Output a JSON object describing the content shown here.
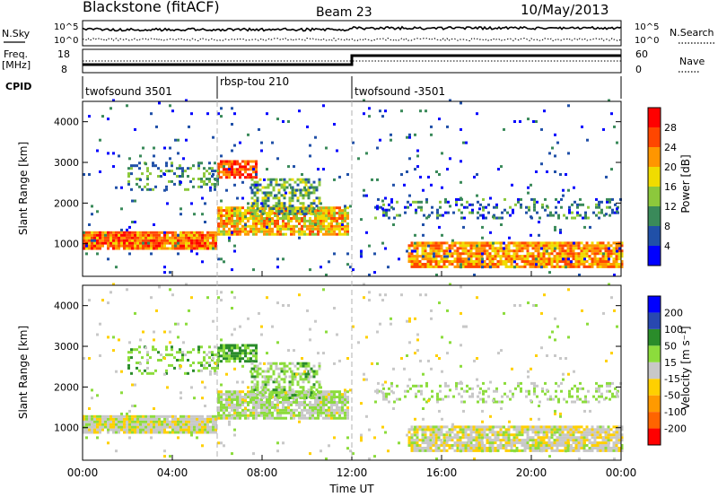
{
  "header": {
    "station": "Blackstone (fitACF)",
    "beam": "Beam 23",
    "date": "10/May/2013"
  },
  "labels": {
    "nsky": "N.Sky",
    "nsearch": "N.Search",
    "freq": "Freq.",
    "freq_unit": "[MHz]",
    "nave": "Nave",
    "cpid": "CPID",
    "xlabel": "Time UT",
    "ylabel": "Slant Range [km]",
    "power_label": "Power [dB]",
    "velocity_label": "Velocity [m s⁻¹]"
  },
  "noise_ticks": {
    "top": "10^5",
    "bottom": "10^0"
  },
  "freq_ticks": [
    "18",
    "8"
  ],
  "nave_ticks": [
    "60",
    "0"
  ],
  "cpid_segments": [
    {
      "label": "twofsound 3501",
      "start": 0,
      "end": 6
    },
    {
      "label": "rbsp-tou 210",
      "start": 6,
      "end": 12
    },
    {
      "label": "twofsound -3501",
      "start": 12,
      "end": 24
    }
  ],
  "power_scale": {
    "ticks": [
      "4",
      "8",
      "12",
      "16",
      "20",
      "24",
      "28"
    ],
    "colors": [
      "#0000ff",
      "#2050a8",
      "#3a8a5a",
      "#8cc83c",
      "#f0dc00",
      "#ff9600",
      "#ff4600",
      "#ff0000"
    ]
  },
  "velocity_scale": {
    "ticks": [
      "-200",
      "-100",
      "-50",
      "-15",
      "15",
      "50",
      "100",
      "200"
    ],
    "colors": [
      "#ff0000",
      "#ff6400",
      "#ff9a00",
      "#ffd000",
      "#c8c8c8",
      "#8cdc3c",
      "#2a8c2a",
      "#2848b0",
      "#0000ff"
    ]
  },
  "chart_data": {
    "type": "heatmap",
    "x_range_hours": [
      0,
      24
    ],
    "x_ticks": [
      "00:00",
      "04:00",
      "08:00",
      "12:00",
      "16:00",
      "20:00",
      "00:00"
    ],
    "y_range_km": [
      200,
      4500
    ],
    "y_ticks": [
      "1000",
      "2000",
      "3000",
      "4000"
    ],
    "scatter_bands": [
      {
        "t0": 0,
        "t1": 6,
        "r0": 850,
        "r1": 1300,
        "density": 0.95,
        "power": 24,
        "velocity": 0
      },
      {
        "t0": 6,
        "t1": 11.8,
        "r0": 1200,
        "r1": 1900,
        "density": 0.85,
        "power": 20,
        "velocity": 10
      },
      {
        "t0": 6,
        "t1": 7.8,
        "r0": 2600,
        "r1": 3000,
        "density": 0.8,
        "power": 26,
        "velocity": 60
      },
      {
        "t0": 7.5,
        "t1": 10.5,
        "r0": 1700,
        "r1": 2600,
        "density": 0.55,
        "power": 12,
        "velocity": 30
      },
      {
        "t0": 2,
        "t1": 6,
        "r0": 2300,
        "r1": 3000,
        "density": 0.3,
        "power": 10,
        "velocity": 40
      },
      {
        "t0": 14.5,
        "t1": 24,
        "r0": 400,
        "r1": 1000,
        "density": 0.85,
        "power": 22,
        "velocity": -5
      },
      {
        "t0": 13,
        "t1": 24,
        "r0": 1600,
        "r1": 2100,
        "density": 0.25,
        "power": 8,
        "velocity": 20
      },
      {
        "t0": 0,
        "t1": 24,
        "r0": 200,
        "r1": 4500,
        "density": 0.03,
        "power": 6,
        "velocity": 0
      }
    ]
  }
}
